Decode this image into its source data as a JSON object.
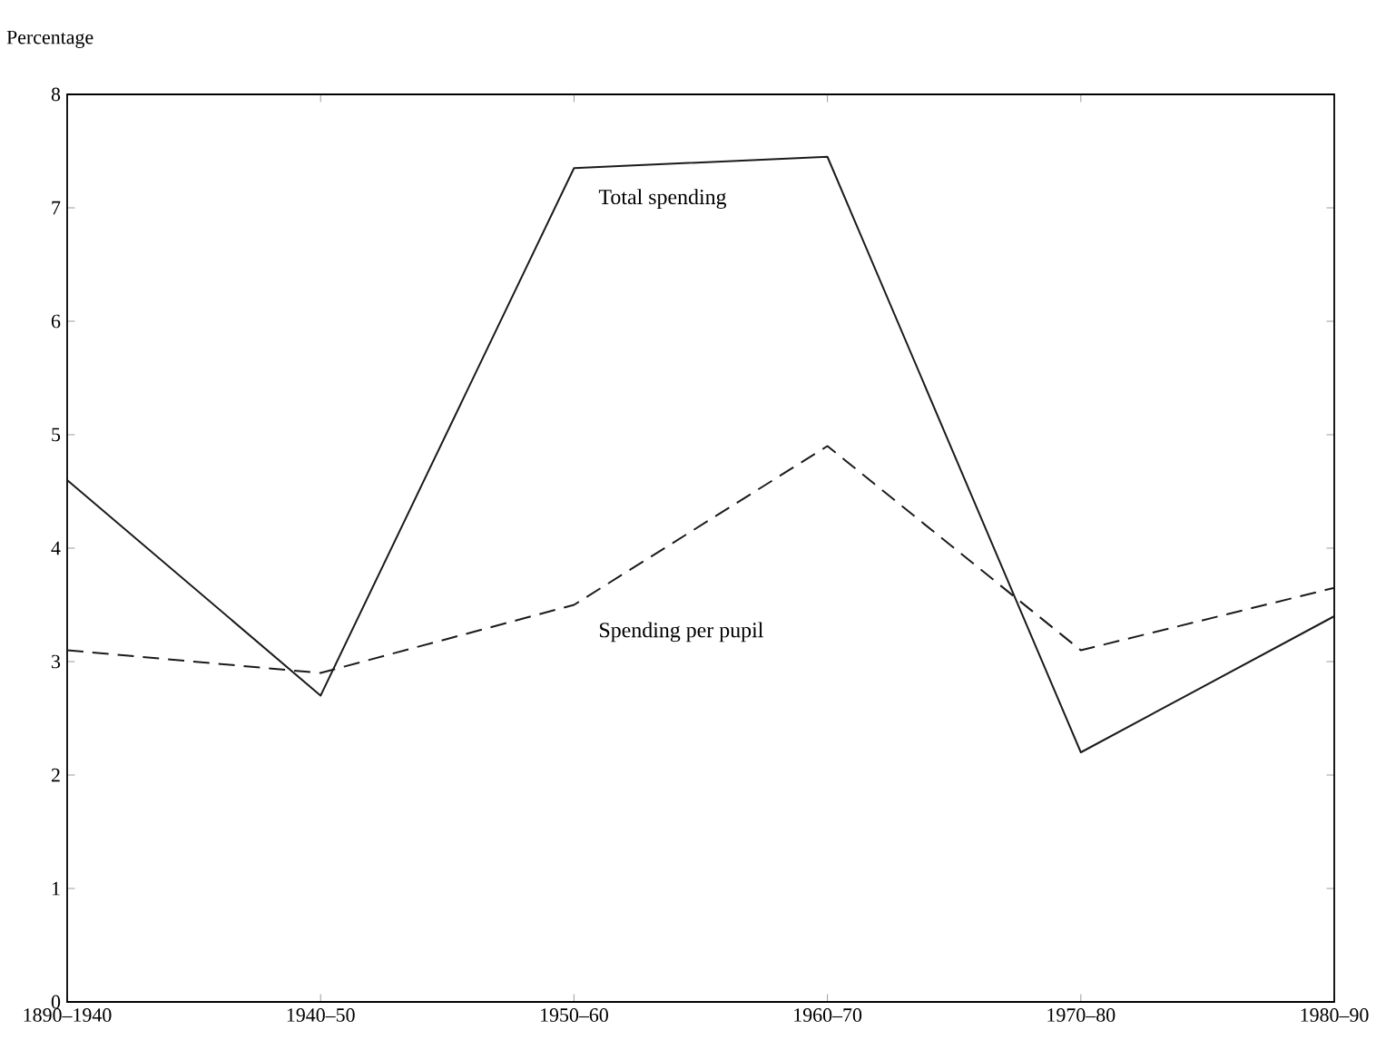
{
  "chart_data": {
    "type": "line",
    "ylabel": "Percentage",
    "categories": [
      "1890–1940",
      "1940–50",
      "1950–60",
      "1960–70",
      "1970–80",
      "1980–90"
    ],
    "series": [
      {
        "name": "Total spending",
        "color": "#1a1a1a",
        "line_style": "solid",
        "values": [
          4.6,
          2.7,
          7.35,
          7.45,
          2.2,
          3.4
        ]
      },
      {
        "name": "Spending per pupil",
        "color": "#1a1a1a",
        "line_style": "dashed",
        "values": [
          3.1,
          2.9,
          3.5,
          4.9,
          3.1,
          3.65
        ]
      }
    ],
    "ylim": [
      0,
      8
    ],
    "yticks": [
      0,
      1,
      2,
      3,
      4,
      5,
      6,
      7,
      8
    ],
    "grid": false,
    "marker": "none"
  }
}
